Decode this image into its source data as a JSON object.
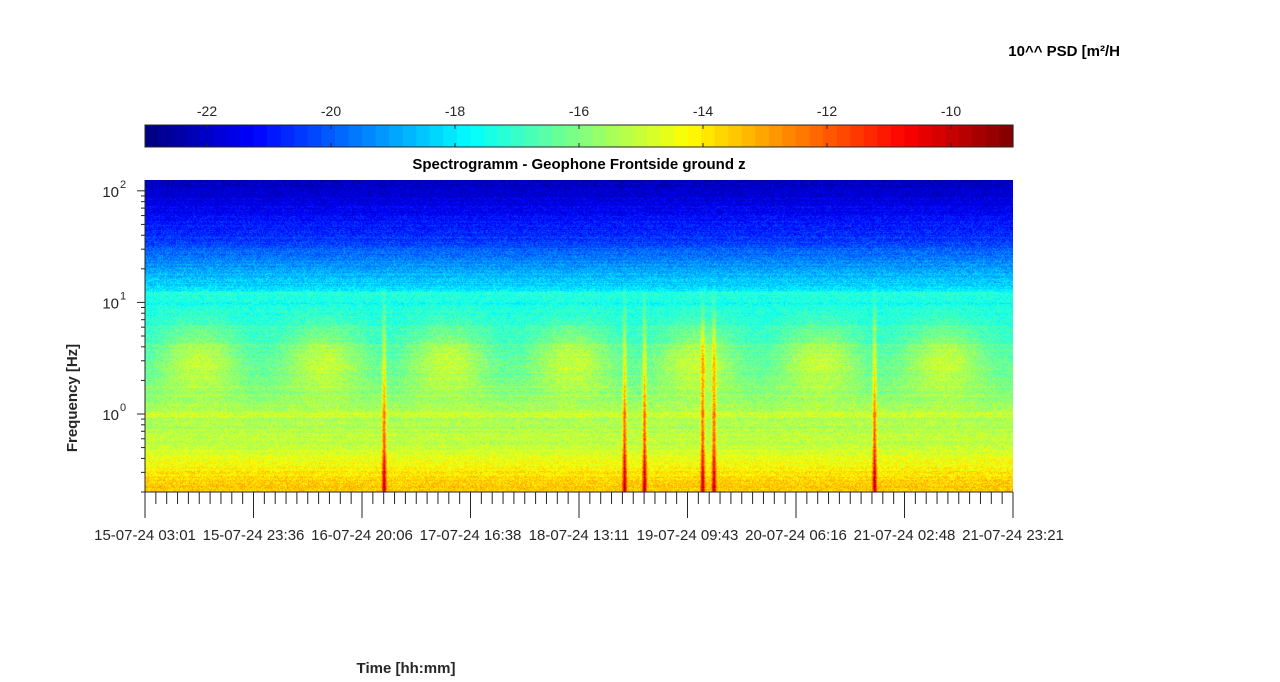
{
  "chart_data": {
    "type": "heatmap",
    "title": "Spectrogramm - Geophone Frontside ground z",
    "xlabel": "Time [hh:mm]",
    "ylabel": "Frequency [Hz]",
    "y_scale": "log",
    "ylim": [
      0.2,
      125
    ],
    "y_ticks": [
      1,
      10,
      100
    ],
    "y_tick_labels": [
      "10",
      "10",
      "10"
    ],
    "y_tick_exponents": [
      "0",
      "1",
      "2"
    ],
    "x_tick_labels": [
      "15-07-24  03:01",
      "15-07-24  23:36",
      "16-07-24  20:06",
      "17-07-24  16:38",
      "18-07-24  13:11",
      "19-07-24  09:43",
      "20-07-24  06:16",
      "21-07-24  02:48",
      "21-07-24  23:21"
    ],
    "colorbar": {
      "title": "10^^ PSD [m²/H",
      "range": [
        -23,
        -9
      ],
      "ticks": [
        -22,
        -20,
        -18,
        -16,
        -14,
        -12,
        -10
      ],
      "tick_labels": [
        "-22",
        "-20",
        "-18",
        "-16",
        "-14",
        "-12",
        "-10"
      ],
      "colormap": "jet"
    },
    "vertical_events_fraction_of_time": [
      0.275,
      0.552,
      0.575,
      0.642,
      0.655,
      0.84
    ]
  }
}
